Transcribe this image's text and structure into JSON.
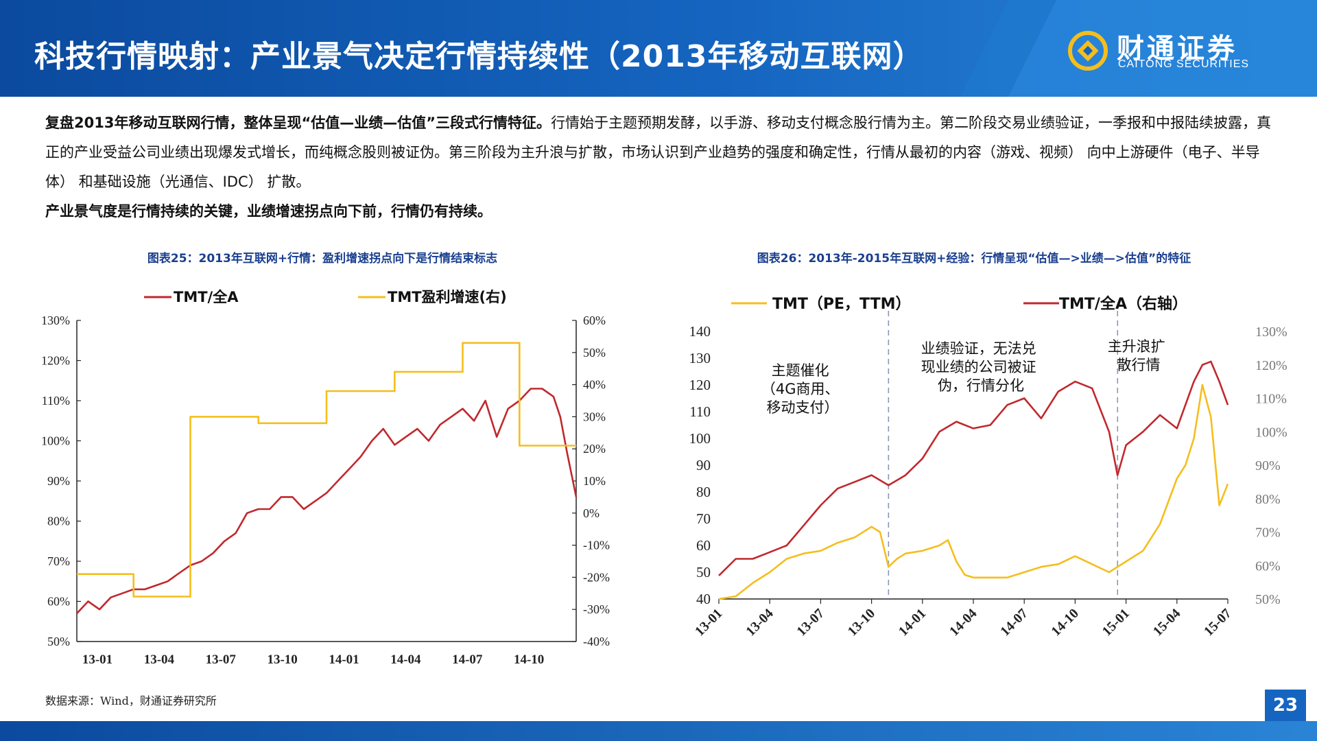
{
  "header": {
    "title": "科技行情映射：产业景气决定行情持续性（2013年移动互联网）",
    "logo_cn": "财通证券",
    "logo_en": "CAITONG SECURITIES"
  },
  "summary": {
    "bold_lead": "复盘2013年移动互联网行情，整体呈现“估值—业绩—估值”三段式行情特征。",
    "body": "行情始于主题预期发酵，以手游、移动支付概念股行情为主。第二阶段交易业绩验证，一季报和中报陆续披露，真正的产业受益公司业绩出现爆发式增长，而纯概念股则被证伪。第三阶段为主升浪与扩散，市场认识到产业趋势的强度和确定性，行情从最初的内容（游戏、视频） 向中上游硬件（电子、半导体） 和基础设施（光通信、IDC） 扩散。",
    "bold_tail": "产业景气度是行情持续的关键，业绩增速拐点向下前，行情仍有持续。"
  },
  "source": "数据来源：Wind，财通证券研究所",
  "page_number": "23",
  "colors": {
    "red": "#c0282d",
    "yellow": "#f5be1c",
    "blue": "#1565c0",
    "title_blue": "#1a3f8f"
  },
  "chart_data": [
    {
      "type": "line",
      "title": "图表25：2013年互联网+行情：盈利增速拐点向下是行情结束标志",
      "x_ticks": [
        "13-01",
        "13-04",
        "13-07",
        "13-10",
        "14-01",
        "14-04",
        "14-07",
        "14-10"
      ],
      "x_range": [
        0,
        22
      ],
      "ylim_left": [
        0.5,
        1.3
      ],
      "ylim_right": [
        -0.4,
        0.6
      ],
      "y_ticks_left": [
        "50%",
        "60%",
        "70%",
        "80%",
        "90%",
        "100%",
        "110%",
        "120%",
        "130%"
      ],
      "y_ticks_right": [
        "-40%",
        "-30%",
        "-20%",
        "-10%",
        "0%",
        "10%",
        "20%",
        "30%",
        "40%",
        "50%",
        "60%"
      ],
      "series": [
        {
          "name": "TMT/全A",
          "axis": "left",
          "color": "#c0282d",
          "x": [
            0,
            0.5,
            1,
            1.5,
            2,
            2.5,
            3,
            3.5,
            4,
            4.5,
            5,
            5.5,
            6,
            6.5,
            7,
            7.5,
            8,
            8.5,
            9,
            9.5,
            10,
            10.5,
            11,
            11.5,
            12,
            12.5,
            13,
            13.5,
            14,
            14.5,
            15,
            15.5,
            16,
            16.5,
            17,
            17.5,
            18,
            18.5,
            19,
            19.5,
            20,
            20.5,
            21,
            21.3,
            21.6,
            22
          ],
          "y": [
            0.57,
            0.6,
            0.58,
            0.61,
            0.62,
            0.63,
            0.63,
            0.64,
            0.65,
            0.67,
            0.69,
            0.7,
            0.72,
            0.75,
            0.77,
            0.82,
            0.83,
            0.83,
            0.86,
            0.86,
            0.83,
            0.85,
            0.87,
            0.9,
            0.93,
            0.96,
            1.0,
            1.03,
            0.99,
            1.01,
            1.03,
            1.0,
            1.04,
            1.06,
            1.08,
            1.05,
            1.1,
            1.01,
            1.08,
            1.1,
            1.13,
            1.13,
            1.11,
            1.06,
            0.97,
            0.86
          ]
        },
        {
          "name": "TMT盈利增速(右)",
          "axis": "right",
          "color": "#f5be1c",
          "step": true,
          "x": [
            0,
            2.5,
            5,
            8,
            11,
            14,
            17,
            19.5,
            22
          ],
          "y": [
            -0.19,
            -0.26,
            0.3,
            0.28,
            0.38,
            0.44,
            0.53,
            0.21,
            0.21
          ]
        }
      ]
    },
    {
      "type": "line",
      "title": "图表26：2013年-2015年互联网+经验：行情呈现“估值—>业绩—>估值”的特征",
      "x_ticks": [
        "13-01",
        "13-04",
        "13-07",
        "13-10",
        "14-01",
        "14-04",
        "14-07",
        "14-10",
        "15-01",
        "15-04",
        "15-07"
      ],
      "x_range": [
        0,
        30
      ],
      "ylim_left": [
        40,
        140
      ],
      "ylim_right": [
        0.5,
        1.3
      ],
      "y_ticks_left": [
        "40",
        "50",
        "60",
        "70",
        "80",
        "90",
        "100",
        "110",
        "120",
        "130",
        "140"
      ],
      "y_ticks_right": [
        "50%",
        "60%",
        "70%",
        "80%",
        "90%",
        "100%",
        "110%",
        "120%",
        "130%"
      ],
      "dividers_x": [
        10,
        23.5
      ],
      "annotations": [
        {
          "lines": [
            "主题催化",
            "（4G商用、",
            "移动支付）"
          ]
        },
        {
          "lines": [
            "业绩验证，无法兑",
            "现业绩的公司被证",
            "伪，行情分化"
          ]
        },
        {
          "lines": [
            "主升浪扩",
            "散行情"
          ]
        }
      ],
      "series": [
        {
          "name": "TMT（PE，TTM）",
          "axis": "left",
          "color": "#f5be1c",
          "x": [
            0,
            1,
            2,
            3,
            4,
            5,
            6,
            7,
            8,
            9,
            9.5,
            10,
            10.5,
            11,
            12,
            13,
            13.5,
            14,
            14.5,
            15,
            16,
            17,
            18,
            19,
            20,
            21,
            22,
            23,
            24,
            25,
            26,
            27,
            27.5,
            28,
            28.5,
            29,
            29.5,
            30
          ],
          "y": [
            40,
            41,
            46,
            50,
            55,
            57,
            58,
            61,
            63,
            67,
            65,
            52,
            55,
            57,
            58,
            60,
            62,
            54,
            49,
            48,
            48,
            48,
            50,
            52,
            53,
            56,
            53,
            50,
            54,
            58,
            68,
            85,
            90,
            100,
            120,
            108,
            75,
            83
          ]
        },
        {
          "name": "TMT/全A（右轴）",
          "axis": "right",
          "color": "#c0282d",
          "x": [
            0,
            1,
            2,
            3,
            4,
            5,
            6,
            7,
            8,
            9,
            10,
            11,
            12,
            13,
            14,
            15,
            16,
            17,
            18,
            19,
            20,
            21,
            22,
            23,
            23.5,
            24,
            25,
            26,
            27,
            28,
            28.5,
            29,
            29.5,
            30
          ],
          "y": [
            0.57,
            0.62,
            0.62,
            0.64,
            0.66,
            0.72,
            0.78,
            0.83,
            0.85,
            0.87,
            0.84,
            0.87,
            0.92,
            1.0,
            1.03,
            1.01,
            1.02,
            1.08,
            1.1,
            1.04,
            1.12,
            1.15,
            1.13,
            1.0,
            0.87,
            0.96,
            1.0,
            1.05,
            1.01,
            1.15,
            1.2,
            1.21,
            1.15,
            1.08
          ]
        }
      ]
    }
  ]
}
